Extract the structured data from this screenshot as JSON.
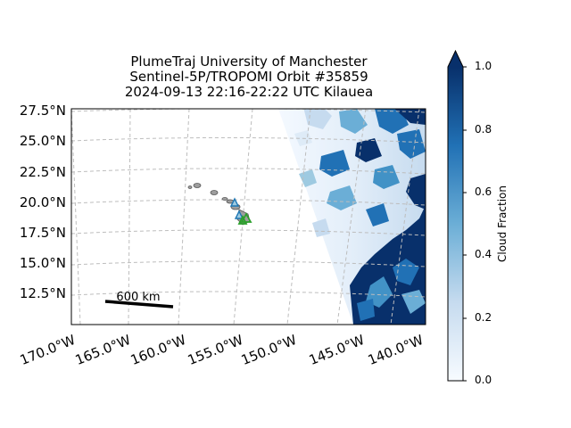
{
  "title": {
    "line1": "PlumeTraj    University of Manchester",
    "line2": "Sentinel-5P/TROPOMI Orbit #35859",
    "line3": "2024-09-13   22:16-22:22 UTC   Kilauea"
  },
  "map": {
    "lat_ticks": [
      "27.5°N",
      "25.0°N",
      "22.5°N",
      "20.0°N",
      "17.5°N",
      "15.0°N",
      "12.5°N"
    ],
    "lon_ticks": [
      "170.0°W",
      "165.0°W",
      "160.0°W",
      "155.0°W",
      "150.0°W",
      "145.0°W",
      "140.0°W"
    ],
    "scale_bar_label": "600 km",
    "volcano": "Kilauea",
    "gridlines": true
  },
  "colorbar": {
    "label": "Cloud Fraction",
    "ticks": [
      "0.0",
      "0.2",
      "0.4",
      "0.6",
      "0.8",
      "1.0"
    ],
    "range": [
      0,
      1
    ],
    "colormap": "Blues",
    "extend": "max"
  },
  "colors": {
    "cloud_dark": "#08306b",
    "cloud_mid": "#2171b5",
    "cloud_light": "#c6dbef",
    "island_fill": "#9e9e9e",
    "marker_green": "#2ca02c",
    "marker_blue": "#1f77b4",
    "grid": "#bdbdbd"
  }
}
